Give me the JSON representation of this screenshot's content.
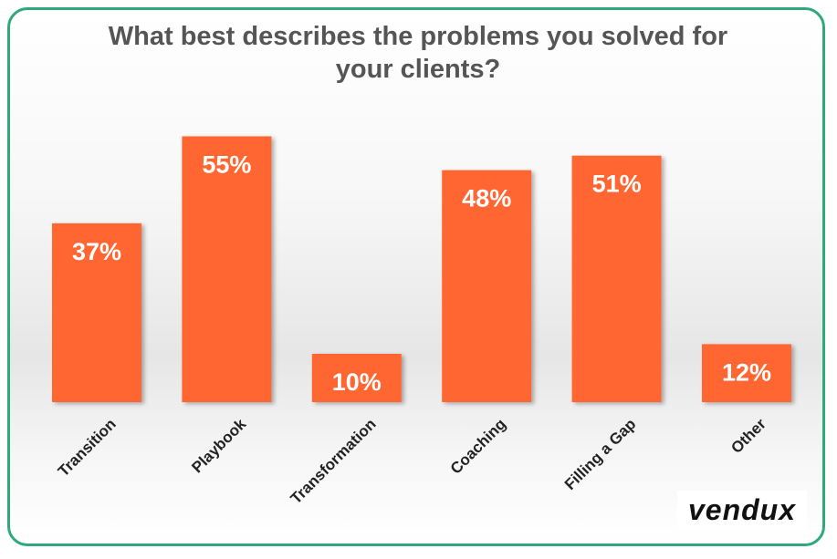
{
  "chart_data": {
    "type": "bar",
    "title": "What best describes the problems you solved for your clients?",
    "categories": [
      "Transition",
      "Playbook",
      "Transformation",
      "Coaching",
      "Filling a Gap",
      "Other"
    ],
    "values": [
      37,
      55,
      10,
      48,
      51,
      12
    ],
    "value_labels": [
      "37%",
      "55%",
      "10%",
      "48%",
      "51%",
      "12%"
    ],
    "color": "#ff6633"
  },
  "logo": "vendux"
}
